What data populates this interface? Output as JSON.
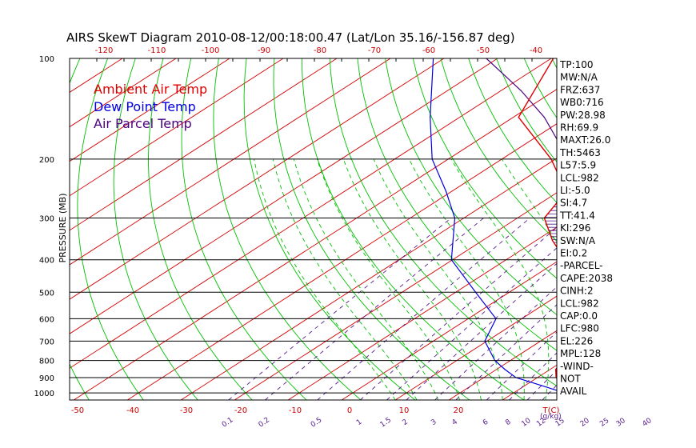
{
  "chart_data": {
    "type": "line",
    "title": "AIRS SkewT Diagram 2010-08-12/00:18:00.47 (Lat/Lon 35.16/-156.87 deg)",
    "ylabel": "PRESSURE (MB)",
    "xlabel": "T(C)",
    "mixing_ratio_unit": "(g/kg)",
    "y_scale": "log",
    "ylim": [
      1050,
      100
    ],
    "pressure_ticks": [
      "100",
      "200",
      "300",
      "400",
      "500",
      "600",
      "700",
      "800",
      "900",
      "1000"
    ],
    "pressure_values": [
      100,
      200,
      300,
      400,
      500,
      600,
      700,
      800,
      900,
      1000
    ],
    "temp_ticks_top": [
      "-120",
      "-110",
      "-100",
      "-90",
      "-80",
      "-70",
      "-60",
      "-50",
      "-40"
    ],
    "temp_ticks_bottom": [
      "-50",
      "-40",
      "-30",
      "-20",
      "-10",
      "0",
      "10",
      "20",
      "T(C)"
    ],
    "mixing_ratio_labels": [
      "0.1",
      "0.2",
      "0.5",
      "1",
      "1.5",
      "2",
      "3",
      "4",
      "6",
      "8",
      "10",
      "12",
      "15",
      "20",
      "25",
      "30",
      "40"
    ],
    "legend": [
      {
        "label": "Ambient Air Temp",
        "color": "#e00000"
      },
      {
        "label": "Dew Point Temp",
        "color": "#0000e0"
      },
      {
        "label": "Air Parcel Temp",
        "color": "#4b0082"
      }
    ],
    "series": [
      {
        "name": "Ambient Air Temp",
        "color": "#e00000",
        "points": [
          [
            1000,
            22.1
          ],
          [
            950,
            17
          ],
          [
            900,
            13.5
          ],
          [
            850,
            11
          ],
          [
            800,
            10
          ],
          [
            700,
            5.8
          ],
          [
            600,
            -1.8
          ],
          [
            500,
            -8.4
          ],
          [
            400,
            -19
          ],
          [
            350,
            -27
          ],
          [
            300,
            -35
          ],
          [
            250,
            -38.6
          ],
          [
            200,
            -50.8
          ],
          [
            150,
            -69
          ],
          [
            100,
            -79.6
          ]
        ]
      },
      {
        "name": "Dew Point Temp",
        "color": "#0000e0",
        "points": [
          [
            1000,
            19.5
          ],
          [
            950,
            13
          ],
          [
            900,
            6
          ],
          [
            850,
            1.5
          ],
          [
            800,
            -2.9
          ],
          [
            700,
            -10.4
          ],
          [
            600,
            -14.8
          ],
          [
            500,
            -26.3
          ],
          [
            400,
            -40.2
          ],
          [
            300,
            -51.7
          ],
          [
            250,
            -61
          ],
          [
            200,
            -73
          ],
          [
            150,
            -85.5
          ],
          [
            100,
            -102
          ]
        ]
      },
      {
        "name": "Air Parcel Temp",
        "color": "#4b0082",
        "points": [
          [
            1000,
            22.6
          ],
          [
            950,
            19.8
          ],
          [
            900,
            17.2
          ],
          [
            850,
            14.4
          ],
          [
            800,
            11.6
          ],
          [
            700,
            5.5
          ],
          [
            600,
            -1.5
          ],
          [
            500,
            -9.3
          ],
          [
            400,
            -17.9
          ],
          [
            300,
            -29.7
          ],
          [
            250,
            -37.9
          ],
          [
            200,
            -47.6
          ],
          [
            150,
            -64.2
          ],
          [
            125,
            -76.2
          ],
          [
            100,
            -92.1
          ]
        ]
      }
    ],
    "cape_shading": "CAPE area between parcel and ambient temperature hatched"
  },
  "indices": [
    "TP:100",
    "MW:N/A",
    "FRZ:637",
    "WB0:716",
    "PW:28.98",
    "RH:69.9",
    "MAXT:26.0",
    "TH:5463",
    "L57:5.9",
    "LCL:982",
    "LI:-5.0",
    "SI:4.7",
    "TT:41.4",
    "KI:296",
    "SW:N/A",
    "EI:0.2",
    "-PARCEL-",
    "CAPE:2038",
    "CINH:2",
    "LCL:982",
    "CAP:0.0",
    "LFC:980",
    "EL:226",
    "MPL:128",
    "-WIND-",
    "NOT",
    "AVAIL"
  ],
  "colors": {
    "isotherm": "#d40000",
    "dry_adiabat": "#00c000",
    "moist_adiabat": "#00c000",
    "mixing_ratio": "#551a8b",
    "isobar": "#000000"
  }
}
